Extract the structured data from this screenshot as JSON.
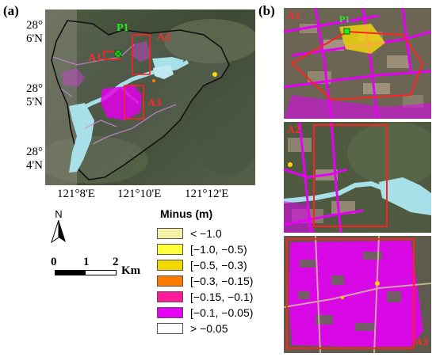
{
  "panel_a": {
    "label": "(a)",
    "lat_ticks": [
      {
        "deg": "28°",
        "min": "6'N"
      },
      {
        "deg": "28°",
        "min": "5'N"
      },
      {
        "deg": "28°",
        "min": "4'N"
      }
    ],
    "lon_ticks": [
      "121°8'E",
      "121°10'E",
      "121°12'E"
    ],
    "boxes": [
      "A1",
      "A2",
      "A3"
    ],
    "point": "P1"
  },
  "panel_b": {
    "label": "(b)",
    "inset_labels": [
      "A1",
      "A2",
      "A3"
    ],
    "point": "P1"
  },
  "north_arrow": {
    "label": "N"
  },
  "scale_bar": {
    "ticks": [
      "0",
      "1",
      "2"
    ],
    "unit": "Km"
  },
  "legend": {
    "title": "Minus (m)",
    "items": [
      {
        "label": "< −1.0",
        "color": "#f5f0a8"
      },
      {
        "label": "[−1.0, −0.5)",
        "color": "#ffff3a"
      },
      {
        "label": "[−0.5, −0.3)",
        "color": "#f2d800"
      },
      {
        "label": "[−0.3, −0.15)",
        "color": "#ff7b00"
      },
      {
        "label": "[−0.15, −0.1)",
        "color": "#ff1b9c"
      },
      {
        "label": "[−0.1, −0.05)",
        "color": "#e600f5"
      },
      {
        "label": "> −0.05",
        "color": "#ffffff"
      }
    ]
  }
}
